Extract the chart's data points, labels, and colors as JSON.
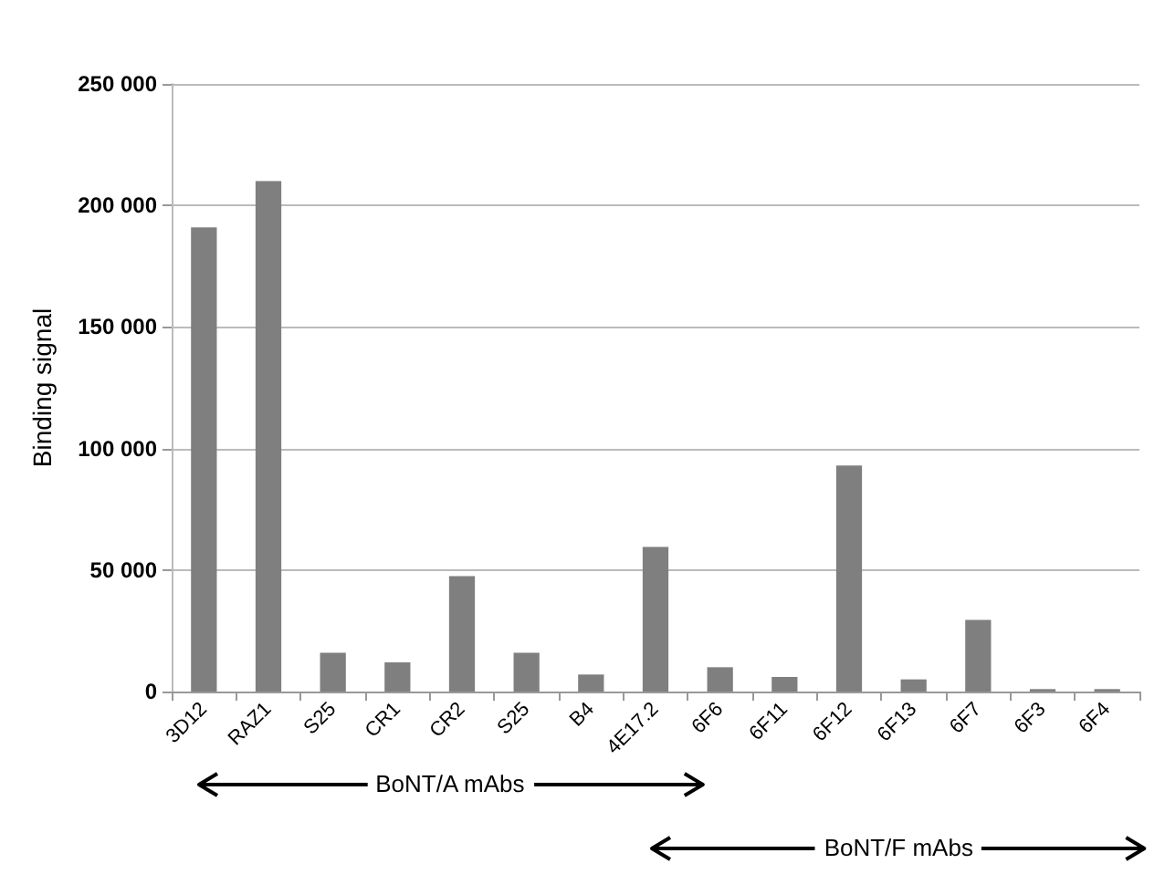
{
  "chart_data": {
    "type": "bar",
    "ylabel": "Binding signal",
    "categories": [
      "3D12",
      "RAZ1",
      "S25",
      "CR1",
      "CR2",
      "S25",
      "B4",
      "4E17.2",
      "6F6",
      "6F11",
      "6F12",
      "6F13",
      "6F7",
      "6F3",
      "6F4"
    ],
    "values": [
      191000,
      210000,
      16000,
      12000,
      47500,
      16000,
      7000,
      59500,
      10000,
      6000,
      93000,
      5000,
      29500,
      1000,
      1000
    ],
    "color": "#7f7f7f",
    "ylim": [
      0,
      250000
    ],
    "yticks": [
      0,
      {
        "value": 50000,
        "label": "50 000"
      },
      {
        "value": 100000,
        "label": "100 000"
      },
      {
        "value": 150000,
        "label": "150 000"
      },
      {
        "value": 200000,
        "label": "200 000"
      },
      {
        "value": 250000,
        "label": "250 000"
      }
    ],
    "grid": "y",
    "annotations": [
      "BoNT/A mAbs",
      "BoNT/F mAbs"
    ]
  }
}
